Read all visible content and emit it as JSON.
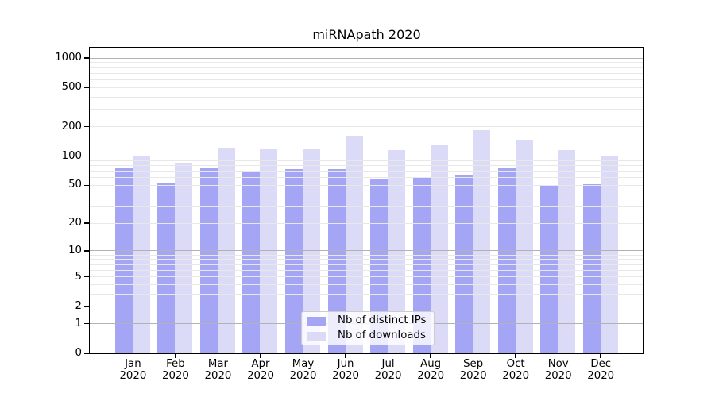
{
  "chart_data": {
    "type": "bar",
    "title": "miRNApath 2020",
    "categories": [
      "Jan",
      "Feb",
      "Mar",
      "Apr",
      "May",
      "Jun",
      "Jul",
      "Aug",
      "Sep",
      "Oct",
      "Nov",
      "Dec"
    ],
    "x_year_label": "2020",
    "series": [
      {
        "name": "Nb of distinct IPs",
        "color": "#a5a5f5",
        "values": [
          74,
          53,
          75,
          70,
          73,
          73,
          57,
          60,
          64,
          76,
          50,
          51
        ]
      },
      {
        "name": "Nb of downloads",
        "color": "#dbdbf8",
        "values": [
          101,
          84,
          118,
          117,
          117,
          159,
          114,
          128,
          184,
          145,
          114,
          101
        ]
      }
    ],
    "y_axis": {
      "scale": "log1p",
      "tick_values": [
        0,
        1,
        2,
        5,
        10,
        20,
        50,
        100,
        200,
        500,
        1000
      ],
      "major_grid_values": [
        1,
        10,
        100,
        1000
      ],
      "top_value": 1250
    },
    "legend_position": "lower-center",
    "grid": "horizontal",
    "colors": {
      "axis": "#000000",
      "major_grid": "#b2b2b2",
      "minor_grid": "#e8e8e8",
      "background": "#ffffff"
    }
  }
}
